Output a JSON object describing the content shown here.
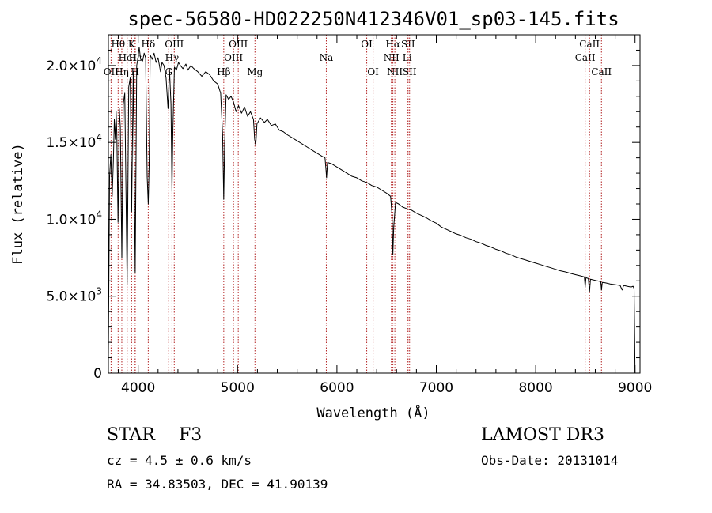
{
  "chart_data": {
    "type": "line",
    "title": "spec-56580-HD022250N412346V01_sp03-145.fits",
    "xlabel": "Wavelength (Å)",
    "ylabel": "Flux (relative)",
    "xlim": [
      3700,
      9050
    ],
    "ylim": [
      0,
      22000
    ],
    "x_ticks": [
      {
        "value": 4000,
        "label": "4000"
      },
      {
        "value": 5000,
        "label": "5000"
      },
      {
        "value": 6000,
        "label": "6000"
      },
      {
        "value": 7000,
        "label": "7000"
      },
      {
        "value": 8000,
        "label": "8000"
      },
      {
        "value": 9000,
        "label": "9000"
      }
    ],
    "y_ticks": [
      {
        "value": 0,
        "mantissa": "0",
        "exp": ""
      },
      {
        "value": 5000,
        "mantissa": "5.0×10",
        "exp": "3"
      },
      {
        "value": 10000,
        "mantissa": "1.0×10",
        "exp": "4"
      },
      {
        "value": 15000,
        "mantissa": "1.5×10",
        "exp": "4"
      },
      {
        "value": 20000,
        "mantissa": "2.0×10",
        "exp": "4"
      }
    ],
    "series": [
      {
        "name": "spectrum",
        "color": "#000000",
        "points": [
          [
            3700,
            1200
          ],
          [
            3712,
            12800
          ],
          [
            3725,
            14200
          ],
          [
            3738,
            11500
          ],
          [
            3750,
            13800
          ],
          [
            3760,
            16500
          ],
          [
            3770,
            15200
          ],
          [
            3778,
            17000
          ],
          [
            3785,
            15500
          ],
          [
            3797,
            9800
          ],
          [
            3810,
            17200
          ],
          [
            3820,
            16000
          ],
          [
            3835,
            7500
          ],
          [
            3850,
            17500
          ],
          [
            3865,
            18200
          ],
          [
            3889,
            5800
          ],
          [
            3905,
            18600
          ],
          [
            3920,
            19200
          ],
          [
            3934,
            10500
          ],
          [
            3950,
            19600
          ],
          [
            3970,
            6500
          ],
          [
            3985,
            20000
          ],
          [
            4000,
            20600
          ],
          [
            4010,
            21200
          ],
          [
            4025,
            20400
          ],
          [
            4045,
            20300
          ],
          [
            4060,
            20800
          ],
          [
            4075,
            20500
          ],
          [
            4090,
            12800
          ],
          [
            4101,
            11000
          ],
          [
            4110,
            13500
          ],
          [
            4120,
            20700
          ],
          [
            4140,
            20400
          ],
          [
            4160,
            20800
          ],
          [
            4180,
            20200
          ],
          [
            4200,
            20500
          ],
          [
            4225,
            19600
          ],
          [
            4240,
            20200
          ],
          [
            4260,
            20000
          ],
          [
            4280,
            19200
          ],
          [
            4300,
            17200
          ],
          [
            4315,
            19800
          ],
          [
            4330,
            17500
          ],
          [
            4340,
            11800
          ],
          [
            4350,
            16000
          ],
          [
            4365,
            19900
          ],
          [
            4385,
            19700
          ],
          [
            4405,
            20200
          ],
          [
            4425,
            20000
          ],
          [
            4450,
            19800
          ],
          [
            4480,
            20100
          ],
          [
            4500,
            19700
          ],
          [
            4530,
            20000
          ],
          [
            4560,
            19800
          ],
          [
            4600,
            19600
          ],
          [
            4640,
            19300
          ],
          [
            4680,
            19600
          ],
          [
            4720,
            19400
          ],
          [
            4760,
            19000
          ],
          [
            4800,
            18800
          ],
          [
            4830,
            18200
          ],
          [
            4850,
            15500
          ],
          [
            4861,
            11300
          ],
          [
            4870,
            15000
          ],
          [
            4885,
            18100
          ],
          [
            4910,
            17800
          ],
          [
            4935,
            18000
          ],
          [
            4960,
            17600
          ],
          [
            4985,
            17000
          ],
          [
            5010,
            17400
          ],
          [
            5040,
            16900
          ],
          [
            5070,
            17300
          ],
          [
            5100,
            16700
          ],
          [
            5130,
            17000
          ],
          [
            5160,
            16500
          ],
          [
            5172,
            15200
          ],
          [
            5183,
            14800
          ],
          [
            5195,
            16200
          ],
          [
            5230,
            16600
          ],
          [
            5270,
            16300
          ],
          [
            5300,
            16500
          ],
          [
            5340,
            16100
          ],
          [
            5380,
            16200
          ],
          [
            5420,
            15800
          ],
          [
            5460,
            15700
          ],
          [
            5500,
            15500
          ],
          [
            5550,
            15300
          ],
          [
            5600,
            15100
          ],
          [
            5650,
            14900
          ],
          [
            5700,
            14700
          ],
          [
            5750,
            14500
          ],
          [
            5800,
            14300
          ],
          [
            5850,
            14100
          ],
          [
            5880,
            14000
          ],
          [
            5890,
            13200
          ],
          [
            5896,
            12700
          ],
          [
            5905,
            13700
          ],
          [
            5950,
            13600
          ],
          [
            6000,
            13400
          ],
          [
            6050,
            13200
          ],
          [
            6100,
            13000
          ],
          [
            6150,
            12800
          ],
          [
            6200,
            12700
          ],
          [
            6250,
            12500
          ],
          [
            6300,
            12400
          ],
          [
            6350,
            12200
          ],
          [
            6400,
            12100
          ],
          [
            6450,
            11900
          ],
          [
            6500,
            11700
          ],
          [
            6540,
            11500
          ],
          [
            6555,
            10300
          ],
          [
            6563,
            7700
          ],
          [
            6572,
            9500
          ],
          [
            6590,
            11100
          ],
          [
            6620,
            11000
          ],
          [
            6660,
            10800
          ],
          [
            6700,
            10700
          ],
          [
            6750,
            10600
          ],
          [
            6800,
            10400
          ],
          [
            6850,
            10250
          ],
          [
            6900,
            10100
          ],
          [
            6950,
            9900
          ],
          [
            7000,
            9750
          ],
          [
            7050,
            9500
          ],
          [
            7100,
            9350
          ],
          [
            7150,
            9200
          ],
          [
            7200,
            9050
          ],
          [
            7250,
            8950
          ],
          [
            7300,
            8800
          ],
          [
            7350,
            8700
          ],
          [
            7400,
            8550
          ],
          [
            7450,
            8450
          ],
          [
            7500,
            8300
          ],
          [
            7550,
            8200
          ],
          [
            7600,
            8050
          ],
          [
            7650,
            7950
          ],
          [
            7700,
            7800
          ],
          [
            7750,
            7700
          ],
          [
            7800,
            7550
          ],
          [
            7850,
            7450
          ],
          [
            7900,
            7350
          ],
          [
            7950,
            7250
          ],
          [
            8000,
            7150
          ],
          [
            8050,
            7050
          ],
          [
            8100,
            6950
          ],
          [
            8150,
            6850
          ],
          [
            8200,
            6750
          ],
          [
            8250,
            6650
          ],
          [
            8300,
            6580
          ],
          [
            8350,
            6480
          ],
          [
            8400,
            6400
          ],
          [
            8450,
            6320
          ],
          [
            8490,
            6250
          ],
          [
            8498,
            5600
          ],
          [
            8506,
            6200
          ],
          [
            8530,
            6150
          ],
          [
            8542,
            5300
          ],
          [
            8552,
            6100
          ],
          [
            8580,
            6060
          ],
          [
            8620,
            6000
          ],
          [
            8655,
            5950
          ],
          [
            8662,
            5400
          ],
          [
            8670,
            5900
          ],
          [
            8700,
            5870
          ],
          [
            8750,
            5800
          ],
          [
            8800,
            5750
          ],
          [
            8850,
            5700
          ],
          [
            8870,
            5400
          ],
          [
            8885,
            5700
          ],
          [
            8920,
            5650
          ],
          [
            8960,
            5600
          ],
          [
            8980,
            5650
          ],
          [
            8990,
            5500
          ],
          [
            8996,
            2500
          ],
          [
            9000,
            0
          ]
        ]
      }
    ],
    "line_markers": [
      {
        "wl": 3727,
        "label": "OII",
        "row": 3
      },
      {
        "wl": 3798,
        "label": "Hθ",
        "row": 1
      },
      {
        "wl": 3835,
        "label": "Hη",
        "row": 3
      },
      {
        "wl": 3889,
        "label": "HeI",
        "row": 2
      },
      {
        "wl": 3934,
        "label": "K",
        "row": 1
      },
      {
        "wl": 3969,
        "label": "H",
        "row": 3
      },
      {
        "wl": 3970,
        "label": "Hε",
        "row": 2
      },
      {
        "wl": 4101,
        "label": "Hδ",
        "row": 1
      },
      {
        "wl": 4307,
        "label": "G",
        "row": 3
      },
      {
        "wl": 4340,
        "label": "Hγ",
        "row": 2
      },
      {
        "wl": 4363,
        "label": "OIII",
        "row": 1
      },
      {
        "wl": 4861,
        "label": "Hβ",
        "row": 3
      },
      {
        "wl": 4959,
        "label": "OIII",
        "row": 2
      },
      {
        "wl": 5007,
        "label": "OIII",
        "row": 1
      },
      {
        "wl": 5175,
        "label": "Mg",
        "row": 3
      },
      {
        "wl": 5893,
        "label": "Na",
        "row": 2
      },
      {
        "wl": 6300,
        "label": "OI",
        "row": 1
      },
      {
        "wl": 6364,
        "label": "OI",
        "row": 3
      },
      {
        "wl": 6548,
        "label": "NII",
        "row": 2
      },
      {
        "wl": 6563,
        "label": "Hα",
        "row": 1
      },
      {
        "wl": 6583,
        "label": "NII",
        "row": 3
      },
      {
        "wl": 6707,
        "label": "Li",
        "row": 2
      },
      {
        "wl": 6716,
        "label": "SII",
        "row": 1
      },
      {
        "wl": 6731,
        "label": "SII",
        "row": 3
      },
      {
        "wl": 8498,
        "label": "CaII",
        "row": 2
      },
      {
        "wl": 8542,
        "label": "CaII",
        "row": 1
      },
      {
        "wl": 8662,
        "label": "CaII",
        "row": 3
      }
    ]
  },
  "info": {
    "class": "STAR",
    "subclass": "F3",
    "survey": "LAMOST DR3",
    "cz": "cz = 4.5 ± 0.6 km/s",
    "obs_date": "Obs-Date: 20131014",
    "radec": "RA =  34.83503, DEC =  41.90139"
  },
  "colors": {
    "marker": "#b22222",
    "line": "#000000"
  }
}
